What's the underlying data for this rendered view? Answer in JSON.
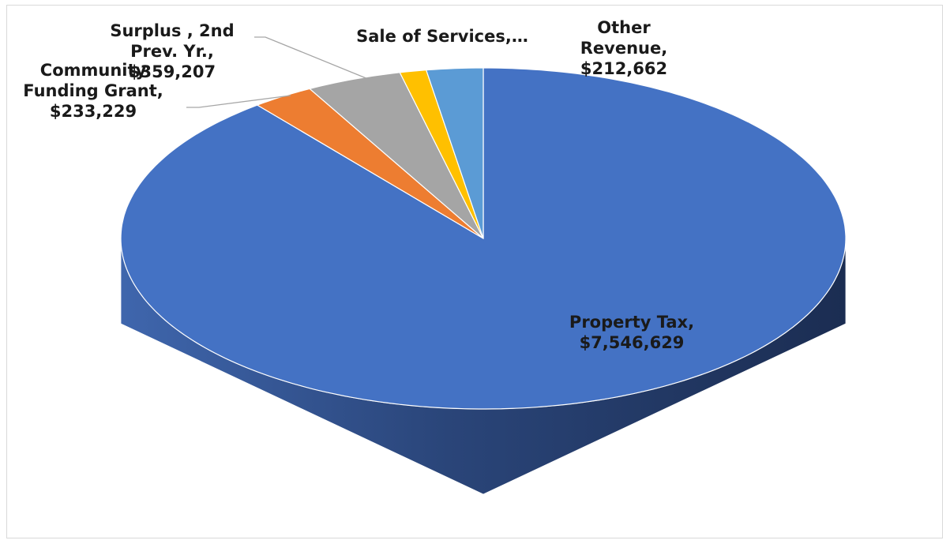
{
  "chart_data": {
    "type": "pie",
    "categories": [
      "Property Tax,",
      "Community Funding Grant,",
      "Surplus , 2nd Prev. Yr.,",
      "Sale of Services,…",
      "Other Revenue,"
    ],
    "values": [
      7546629,
      233229,
      359207,
      100000,
      212662
    ],
    "value_labels": [
      "$7,546,629",
      "$233,229",
      "$359,207",
      null,
      "$212,662"
    ],
    "colors": [
      "#4472c4",
      "#ed7d31",
      "#a5a5a5",
      "#ffc000",
      "#5b9bd5"
    ]
  }
}
